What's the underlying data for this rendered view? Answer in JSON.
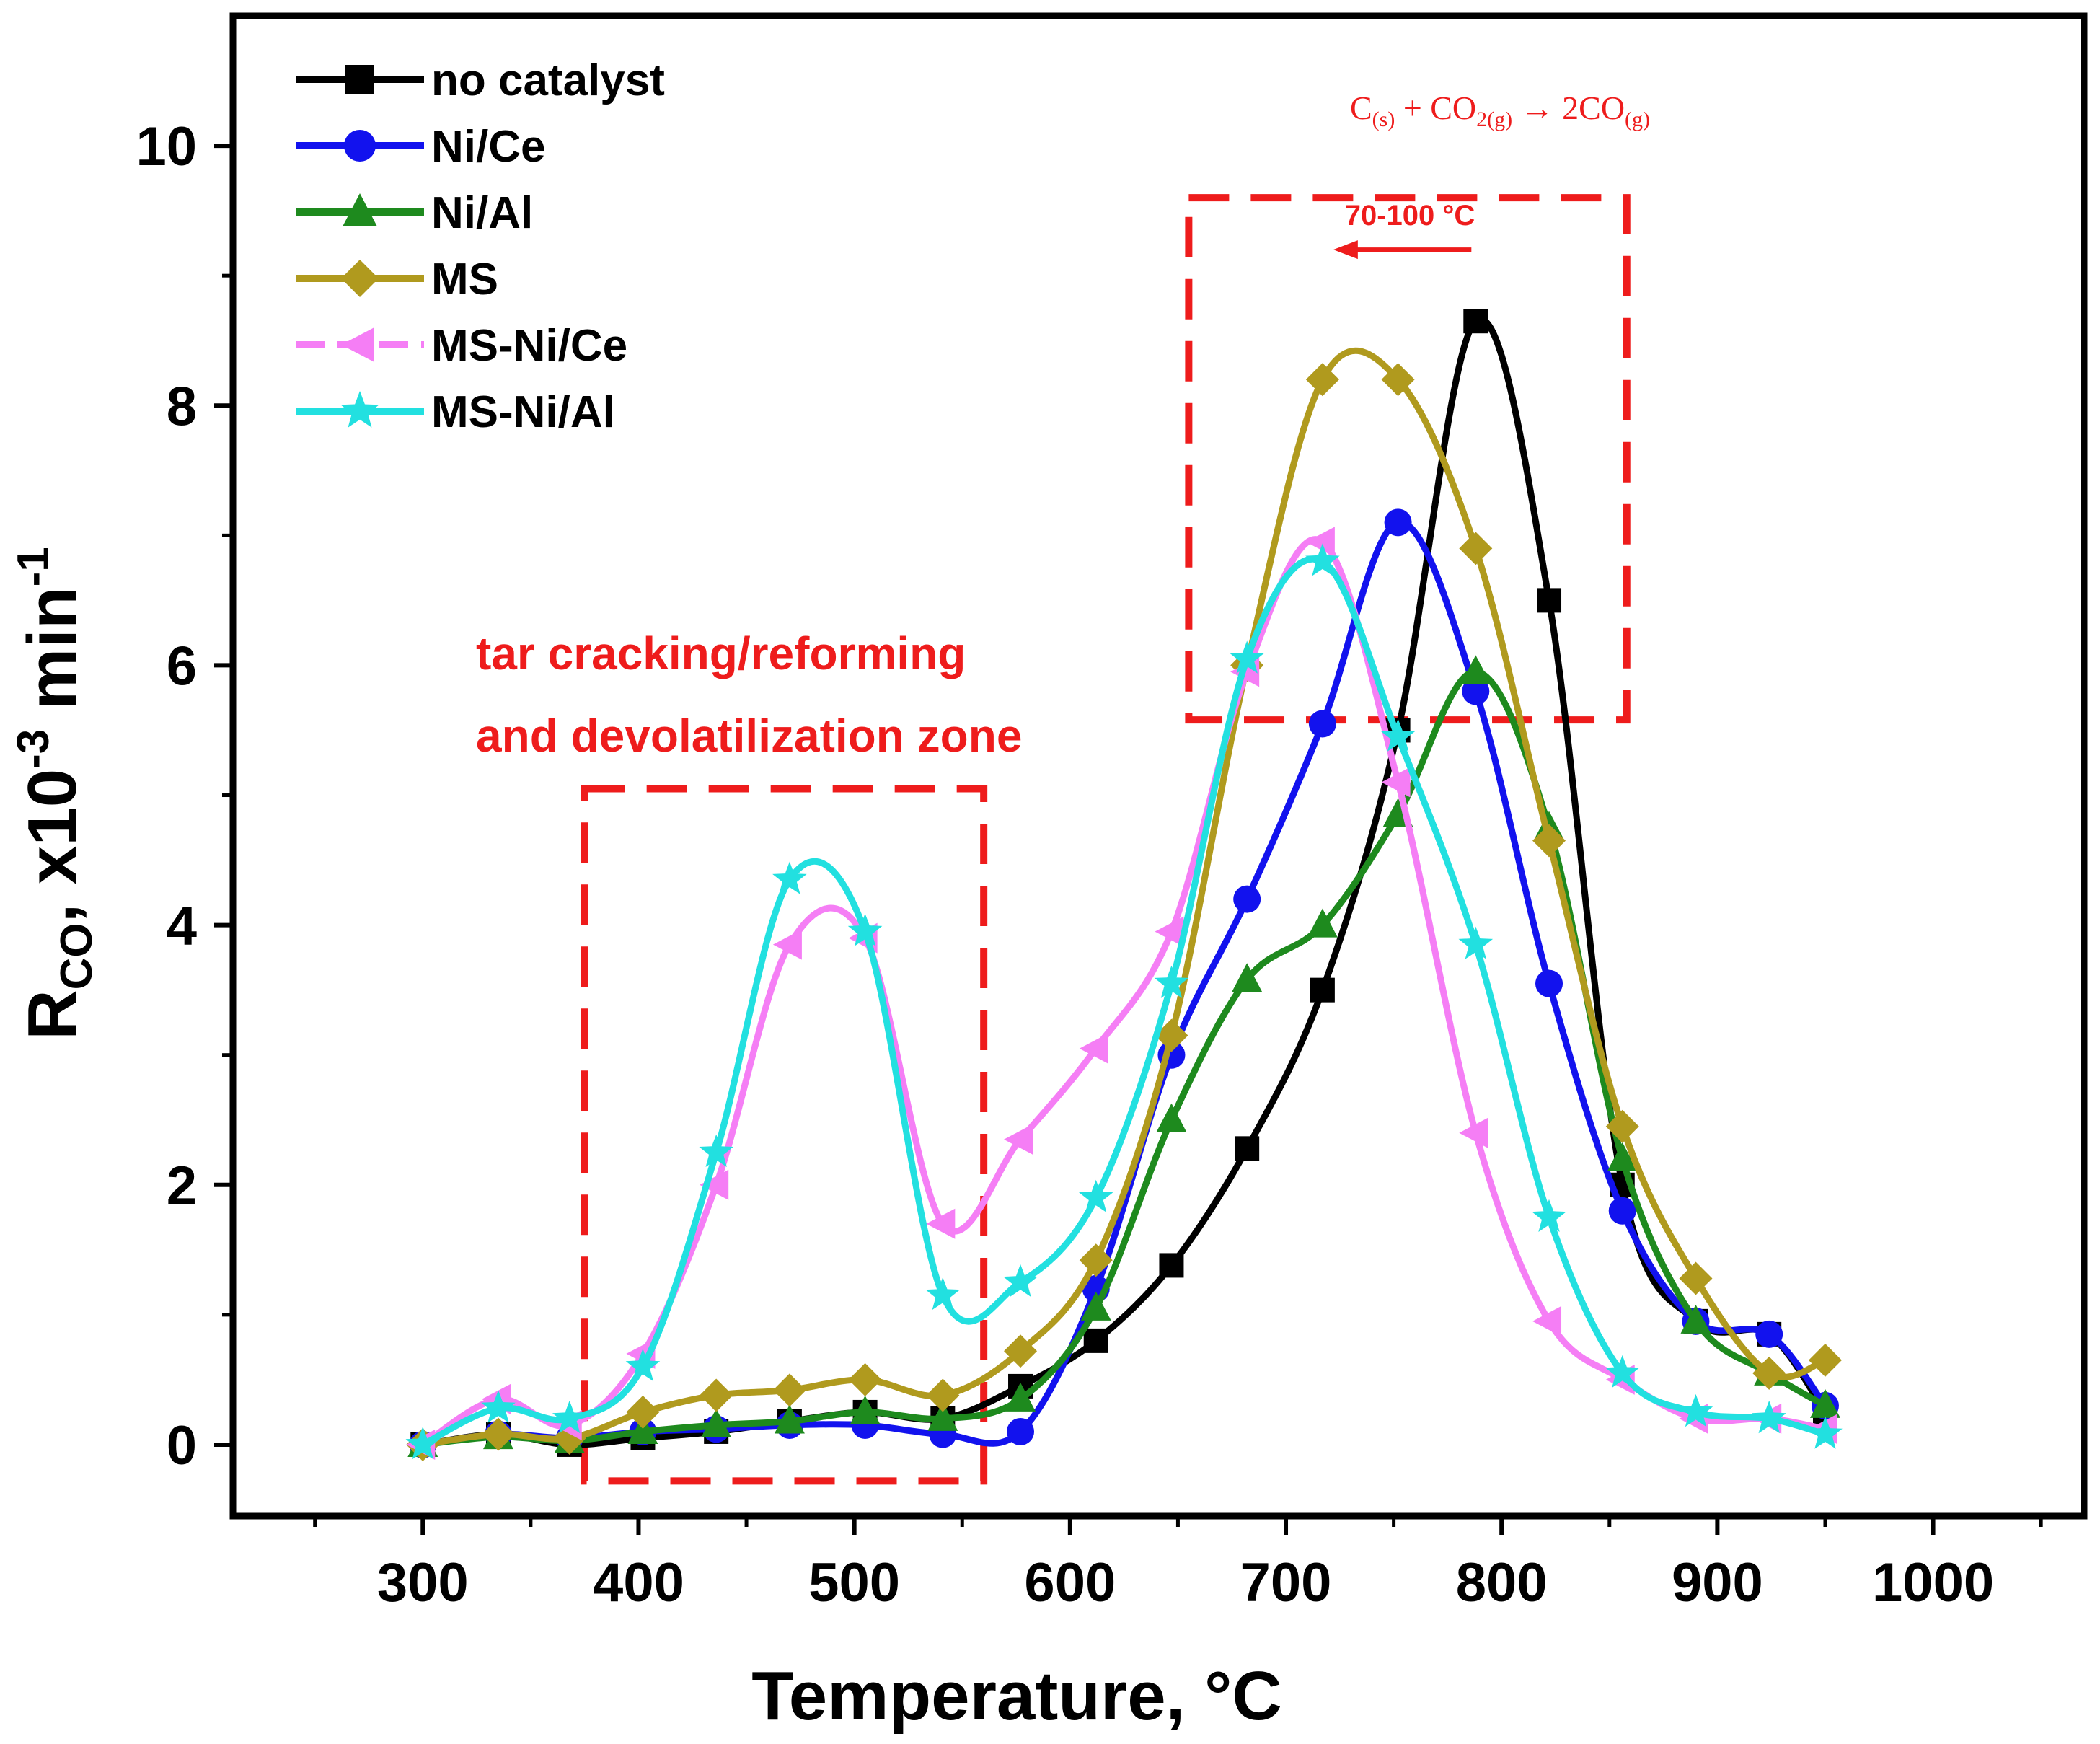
{
  "chart_data": {
    "type": "line",
    "xlabel": "Temperature, °C",
    "ylabel": "R",
    "ylabel_sub": "CO",
    "ylabel_rest": ", x10",
    "ylabel_sup1": "-3",
    "ylabel_unit": " min",
    "ylabel_sup2": "-1",
    "xlim": [
      212,
      1070
    ],
    "ylim": [
      -0.55,
      11.0
    ],
    "xticks": [
      300,
      400,
      500,
      600,
      700,
      800,
      900,
      1000
    ],
    "xtick_labels": [
      "300",
      "400",
      "500",
      "600",
      "700",
      "800",
      "900",
      "1000"
    ],
    "yticks": [
      0,
      2,
      4,
      6,
      8,
      10
    ],
    "ytick_labels": [
      "0",
      "2",
      "4",
      "6",
      "8",
      "10"
    ],
    "legend_position": "top-left",
    "series": [
      {
        "name": "no catalyst",
        "color": "#000000",
        "marker": "square",
        "x": [
          300,
          335,
          368,
          402,
          436,
          470,
          505,
          541,
          577,
          612,
          647,
          682,
          717,
          752,
          788,
          822,
          856,
          890,
          924,
          950
        ],
        "y": [
          0.0,
          0.08,
          0.0,
          0.05,
          0.1,
          0.18,
          0.25,
          0.2,
          0.45,
          0.8,
          1.38,
          2.28,
          3.5,
          5.5,
          8.65,
          6.5,
          2.0,
          0.95,
          0.85,
          0.25
        ]
      },
      {
        "name": "Ni/Ce",
        "color": "#1212ee",
        "marker": "circle",
        "x": [
          300,
          335,
          368,
          402,
          436,
          470,
          505,
          541,
          577,
          612,
          647,
          682,
          717,
          752,
          788,
          822,
          856,
          890,
          924,
          950
        ],
        "y": [
          0.0,
          0.08,
          0.05,
          0.1,
          0.12,
          0.15,
          0.15,
          0.08,
          0.1,
          1.2,
          3.0,
          4.2,
          5.55,
          7.1,
          5.8,
          3.55,
          1.8,
          0.95,
          0.85,
          0.3
        ]
      },
      {
        "name": "Ni/Al",
        "color": "#1e8a1e",
        "marker": "triangle-up",
        "x": [
          300,
          335,
          368,
          402,
          436,
          470,
          505,
          541,
          577,
          612,
          647,
          682,
          717,
          752,
          788,
          822,
          856,
          890,
          924,
          950
        ],
        "y": [
          0.0,
          0.06,
          0.03,
          0.1,
          0.15,
          0.18,
          0.25,
          0.2,
          0.35,
          1.05,
          2.5,
          3.58,
          4.0,
          4.85,
          5.95,
          4.75,
          2.2,
          0.95,
          0.55,
          0.3
        ]
      },
      {
        "name": "MS",
        "color": "#b09a1e",
        "marker": "diamond",
        "x": [
          300,
          335,
          368,
          402,
          436,
          470,
          505,
          541,
          577,
          612,
          647,
          682,
          717,
          752,
          788,
          822,
          856,
          890,
          924,
          950
        ],
        "y": [
          0.0,
          0.08,
          0.05,
          0.25,
          0.38,
          0.42,
          0.5,
          0.38,
          0.72,
          1.42,
          3.15,
          6.0,
          8.2,
          8.2,
          6.9,
          4.65,
          2.45,
          1.28,
          0.55,
          0.65
        ]
      },
      {
        "name": "MS-Ni/Ce",
        "color": "#f57ef5",
        "marker": "triangle-left",
        "x": [
          300,
          335,
          368,
          402,
          436,
          470,
          505,
          541,
          577,
          612,
          647,
          682,
          717,
          752,
          788,
          822,
          856,
          890,
          924,
          950
        ],
        "y": [
          0.0,
          0.35,
          0.15,
          0.7,
          2.0,
          3.85,
          3.9,
          1.7,
          2.35,
          3.05,
          3.95,
          5.95,
          6.95,
          5.1,
          2.4,
          0.95,
          0.5,
          0.2,
          0.2,
          0.12
        ]
      },
      {
        "name": "MS-Ni/Al",
        "color": "#22e0e0",
        "marker": "star",
        "x": [
          300,
          335,
          368,
          402,
          436,
          470,
          505,
          541,
          577,
          612,
          647,
          682,
          717,
          752,
          788,
          822,
          856,
          890,
          924,
          950
        ],
        "y": [
          0.0,
          0.28,
          0.2,
          0.6,
          2.25,
          4.35,
          3.95,
          1.15,
          1.25,
          1.9,
          3.55,
          6.05,
          6.8,
          5.45,
          3.85,
          1.75,
          0.55,
          0.25,
          0.2,
          0.08
        ]
      }
    ],
    "annotations": {
      "zone1_line1": "tar cracking/reforming",
      "zone1_line2": "and devolatilization zone",
      "zone1_box": {
        "x_min": 375,
        "x_max": 560,
        "y_min": -0.28,
        "y_max": 5.05
      },
      "zone2_box": {
        "x_min": 655,
        "x_max": 858,
        "y_min": 5.58,
        "y_max": 9.6
      },
      "shift_label": "70-100 °C",
      "shift_arrow": {
        "x_from": 786,
        "x_to": 722,
        "y": 9.2
      },
      "reaction": {
        "p1": "C",
        "s1": "(s)",
        "p2": " + CO",
        "s2": "2(g)",
        "p3": " → 2CO",
        "s3": "(g)"
      },
      "color": "#ee1c1c"
    }
  }
}
